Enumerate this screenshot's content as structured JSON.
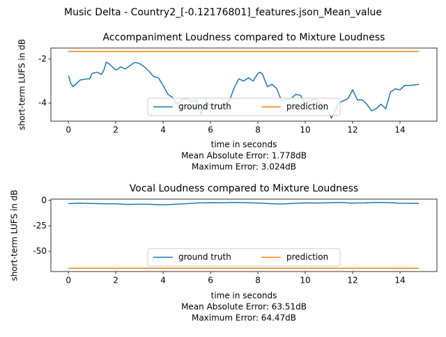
{
  "title": "Music Delta - Country2_[-0.12176801]_features.json_Mean_value",
  "chart_data": [
    {
      "type": "line",
      "title": "Accompaniment Loudness compared to Mixture Loudness",
      "xlabel": "time in seconds",
      "ylabel": "short-term LUFS in dB",
      "annotations": [
        "Mean Absolute Error: 1.778dB",
        "Maximum Error: 3.024dB"
      ],
      "x": [
        0,
        0.1,
        0.2,
        0.4,
        0.5,
        0.8,
        0.9,
        1.0,
        1.2,
        1.4,
        1.5,
        1.6,
        1.7,
        1.8,
        2.0,
        2.1,
        2.2,
        2.4,
        2.6,
        2.8,
        3.0,
        3.2,
        3.4,
        3.6,
        3.8,
        4.0,
        4.2,
        4.4,
        4.6,
        4.8,
        5.0,
        5.2,
        5.4,
        5.6,
        5.8,
        6.0,
        6.2,
        6.4,
        6.6,
        6.8,
        7.0,
        7.2,
        7.4,
        7.6,
        7.8,
        8.0,
        8.1,
        8.2,
        8.4,
        8.6,
        8.8,
        9.0,
        9.2,
        9.4,
        9.6,
        9.8,
        10.0,
        10.2,
        10.4,
        10.6,
        10.8,
        11.0,
        11.1,
        11.2,
        11.4,
        11.6,
        11.8,
        12.0,
        12.2,
        12.4,
        12.6,
        12.8,
        13.0,
        13.2,
        13.4,
        13.6,
        13.8,
        14.0,
        14.2,
        14.4,
        14.8
      ],
      "series": [
        {
          "name": "ground truth",
          "color": "#1f77b4",
          "values": [
            -2.75,
            -3.1,
            -3.25,
            -3.05,
            -2.95,
            -2.9,
            -2.9,
            -2.65,
            -2.6,
            -2.7,
            -2.5,
            -2.15,
            -2.2,
            -2.3,
            -2.5,
            -2.45,
            -2.35,
            -2.45,
            -2.3,
            -2.15,
            -2.2,
            -2.35,
            -2.55,
            -2.8,
            -2.85,
            -3.2,
            -3.6,
            -3.75,
            -4.05,
            -3.85,
            -3.8,
            -3.95,
            -3.85,
            -4.5,
            -3.95,
            -4.1,
            -4.0,
            -4.1,
            -4.05,
            -3.9,
            -3.3,
            -2.9,
            -3.0,
            -2.85,
            -3.0,
            -2.65,
            -2.6,
            -2.7,
            -3.25,
            -3.15,
            -3.35,
            -3.9,
            -3.85,
            -3.8,
            -3.6,
            -3.65,
            -4.05,
            -3.9,
            -3.8,
            -3.95,
            -4.1,
            -4.45,
            -4.68,
            -4.5,
            -4.0,
            -3.9,
            -3.8,
            -3.4,
            -3.85,
            -3.85,
            -4.05,
            -4.35,
            -4.25,
            -4.05,
            -4.25,
            -3.5,
            -3.35,
            -3.4,
            -3.2,
            -3.2,
            -3.15
          ]
        },
        {
          "name": "prediction",
          "color": "#ff7f0e",
          "values": [
            -1.654,
            -1.654,
            -1.654,
            -1.654,
            -1.654,
            -1.654,
            -1.654,
            -1.654,
            -1.654,
            -1.654,
            -1.654,
            -1.654,
            -1.654,
            -1.654,
            -1.654,
            -1.654,
            -1.654,
            -1.654,
            -1.654,
            -1.654,
            -1.654,
            -1.654,
            -1.654,
            -1.654,
            -1.654,
            -1.654,
            -1.654,
            -1.654,
            -1.654,
            -1.654,
            -1.654,
            -1.654,
            -1.654,
            -1.654,
            -1.654,
            -1.654,
            -1.654,
            -1.654,
            -1.654,
            -1.654,
            -1.654,
            -1.654,
            -1.654,
            -1.654,
            -1.654,
            -1.654,
            -1.654,
            -1.654,
            -1.654,
            -1.654,
            -1.654,
            -1.654,
            -1.654,
            -1.654,
            -1.654,
            -1.654,
            -1.654,
            -1.654,
            -1.654,
            -1.654,
            -1.654,
            -1.654,
            -1.654,
            -1.654,
            -1.654,
            -1.654,
            -1.654,
            -1.654,
            -1.654,
            -1.654,
            -1.654,
            -1.654,
            -1.654,
            -1.654,
            -1.654,
            -1.654,
            -1.654,
            -1.654,
            -1.654,
            -1.654,
            -1.654
          ]
        }
      ],
      "xlim": [
        -0.74,
        15.56
      ],
      "xticks": [
        0,
        2,
        4,
        6,
        8,
        10,
        12,
        14
      ],
      "ylim": [
        -4.82,
        -1.5
      ],
      "yticks": [
        -4,
        -2
      ],
      "legend": "lower center"
    },
    {
      "type": "line",
      "title": "Vocal Loudness compared to Mixture Loudness",
      "xlabel": "time in seconds",
      "ylabel": "short-term LUFS in dB",
      "annotations": [
        "Mean Absolute Error: 63.51dB",
        "Maximum Error: 64.47dB"
      ],
      "x": [
        0,
        0.5,
        1.0,
        1.5,
        2.0,
        2.5,
        3.0,
        3.5,
        4.0,
        4.5,
        5.0,
        5.5,
        6.0,
        6.5,
        7.0,
        7.5,
        8.0,
        8.5,
        9.0,
        9.5,
        10.0,
        10.5,
        11.0,
        11.5,
        12.0,
        12.5,
        13.0,
        13.5,
        14.0,
        14.5,
        14.8
      ],
      "series": [
        {
          "name": "ground truth",
          "color": "#1f77b4",
          "values": [
            -3.2,
            -2.8,
            -3.1,
            -3.3,
            -3.4,
            -4.0,
            -3.7,
            -3.9,
            -4.3,
            -3.8,
            -3.2,
            -2.5,
            -2.3,
            -2.4,
            -2.0,
            -2.3,
            -2.6,
            -3.2,
            -3.6,
            -3.0,
            -2.5,
            -2.6,
            -2.4,
            -2.0,
            -2.7,
            -2.5,
            -2.0,
            -2.2,
            -2.8,
            -2.9,
            -3.0
          ]
        },
        {
          "name": "prediction",
          "color": "#ff7f0e",
          "values": [
            -66.47,
            -66.47,
            -66.47,
            -66.47,
            -66.47,
            -66.47,
            -66.47,
            -66.47,
            -66.47,
            -66.47,
            -66.47,
            -66.47,
            -66.47,
            -66.47,
            -66.47,
            -66.47,
            -66.47,
            -66.47,
            -66.47,
            -66.47,
            -66.47,
            -66.47,
            -66.47,
            -66.47,
            -66.47,
            -66.47,
            -66.47,
            -66.47,
            -66.47,
            -66.47,
            -66.47
          ]
        }
      ],
      "xlim": [
        -0.74,
        15.56
      ],
      "xticks": [
        0,
        2,
        4,
        6,
        8,
        10,
        12,
        14
      ],
      "ylim": [
        -69.7,
        1.2
      ],
      "yticks": [
        -50,
        -25,
        0
      ],
      "legend": "lower center"
    }
  ]
}
